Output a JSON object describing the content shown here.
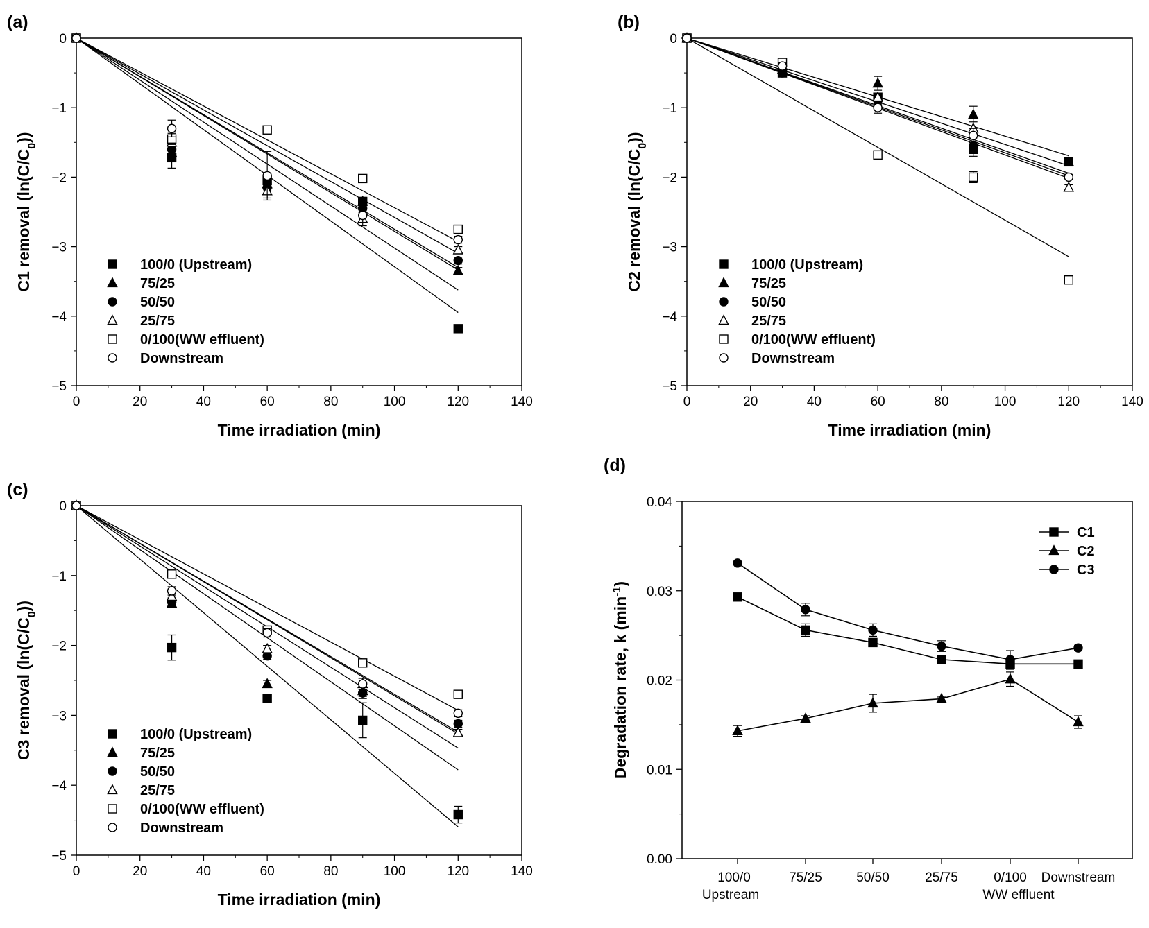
{
  "chart_data": [
    {
      "type": "scatter",
      "panel_label": "(a)",
      "xlabel": "Time irradiation (min)",
      "ylabel": "C1 removal (ln(C/C",
      "ylabel_sub": "0",
      "ylabel_end": "))",
      "xlim": [
        0,
        140
      ],
      "ylim": [
        -5,
        0
      ],
      "xticks": [
        0,
        20,
        40,
        60,
        80,
        100,
        120,
        140
      ],
      "xtick_labels": [
        "0",
        "20",
        "40",
        "60",
        "80",
        "100",
        "120",
        "140"
      ],
      "yticks": [
        0,
        -1,
        -2,
        -3,
        -4,
        -5
      ],
      "ytick_labels": [
        "0",
        "−1",
        "−2",
        "−3",
        "−4",
        "−5"
      ],
      "legend_position": "lower-left",
      "x": [
        0,
        30,
        60,
        90,
        120
      ],
      "series": [
        {
          "name": "100/0 (Upstream)",
          "marker": "square-filled",
          "values": [
            0,
            -1.72,
            -2.05,
            -2.35,
            -4.18
          ],
          "err": [
            0,
            0.15,
            0.1,
            0.05,
            0.05
          ],
          "slope": -0.0329
        },
        {
          "name": "75/25",
          "marker": "triangle-filled",
          "values": [
            0,
            -1.65,
            -2.1,
            -2.35,
            -3.35
          ],
          "err": [
            0,
            0.08,
            0.1,
            0.06,
            0.05
          ],
          "slope": -0.0302
        },
        {
          "name": "50/50",
          "marker": "circle-filled",
          "values": [
            0,
            -1.6,
            -2.15,
            -2.45,
            -3.2
          ],
          "err": [
            0,
            0.08,
            0.1,
            0.06,
            0.05
          ],
          "slope": -0.0278
        },
        {
          "name": "25/75",
          "marker": "triangle-open",
          "values": [
            0,
            -1.5,
            -2.2,
            -2.6,
            -3.05
          ],
          "err": [
            0,
            0.08,
            0.1,
            0.1,
            0.05
          ],
          "slope": -0.0275
        },
        {
          "name": "0/100(WW effluent)",
          "marker": "square-open",
          "values": [
            0,
            -1.45,
            -1.32,
            -2.02,
            -2.75
          ],
          "err": [
            0,
            0.08,
            0.05,
            0.05,
            0.05
          ],
          "slope": -0.0244
        },
        {
          "name": "Downstream",
          "marker": "circle-open",
          "values": [
            0,
            -1.3,
            -1.98,
            -2.55,
            -2.9
          ],
          "err": [
            0,
            0.12,
            0.35,
            0.1,
            0.05
          ],
          "slope": -0.0258
        }
      ]
    },
    {
      "type": "scatter",
      "panel_label": "(b)",
      "xlabel": "Time irradiation (min)",
      "ylabel": "C2 removal (ln(C/C",
      "ylabel_sub": "0",
      "ylabel_end": "))",
      "xlim": [
        0,
        140
      ],
      "ylim": [
        -5,
        0
      ],
      "xticks": [
        0,
        20,
        40,
        60,
        80,
        100,
        120,
        140
      ],
      "xtick_labels": [
        "0",
        "20",
        "40",
        "60",
        "80",
        "100",
        "120",
        "140"
      ],
      "yticks": [
        0,
        -1,
        -2,
        -3,
        -4,
        -5
      ],
      "ytick_labels": [
        "0",
        "−1",
        "−2",
        "−3",
        "−4",
        "−5"
      ],
      "legend_position": "lower-left",
      "x": [
        0,
        30,
        60,
        90,
        120
      ],
      "series": [
        {
          "name": "100/0 (Upstream)",
          "marker": "square-filled",
          "values": [
            0,
            -0.5,
            -0.85,
            -1.6,
            -1.78
          ],
          "err": [
            0,
            0.05,
            0.05,
            0.1,
            0.04
          ],
          "slope": -0.0162
        },
        {
          "name": "75/25",
          "marker": "triangle-filled",
          "values": [
            0,
            -0.45,
            -0.65,
            -1.1,
            -1.78
          ],
          "err": [
            0,
            0.05,
            0.1,
            0.12,
            0.04
          ],
          "slope": -0.0141
        },
        {
          "name": "50/50",
          "marker": "circle-filled",
          "values": [
            0,
            -0.5,
            -0.9,
            -1.55,
            -1.78
          ],
          "err": [
            0,
            0.05,
            0.05,
            0.1,
            0.04
          ],
          "slope": -0.0168
        },
        {
          "name": "25/75",
          "marker": "triangle-open",
          "values": [
            0,
            -0.4,
            -0.85,
            -1.3,
            -2.15
          ],
          "err": [
            0,
            0.05,
            0.05,
            0.1,
            0.04
          ],
          "slope": -0.0153
        },
        {
          "name": "0/100(WW effluent)",
          "marker": "square-open",
          "values": [
            0,
            -0.35,
            -1.68,
            -2.0,
            -3.48
          ],
          "err": [
            0,
            0.05,
            0.05,
            0.08,
            0.04
          ],
          "slope": -0.0262
        },
        {
          "name": "Downstream",
          "marker": "circle-open",
          "values": [
            0,
            -0.4,
            -1.0,
            -1.4,
            -2.0
          ],
          "err": [
            0,
            0.05,
            0.08,
            0.1,
            0.04
          ],
          "slope": -0.0165
        }
      ]
    },
    {
      "type": "scatter",
      "panel_label": "(c)",
      "xlabel": "Time irradiation (min)",
      "ylabel": "C3 removal (ln(C/C",
      "ylabel_sub": "0",
      "ylabel_end": "))",
      "xlim": [
        0,
        140
      ],
      "ylim": [
        -5,
        0
      ],
      "xticks": [
        0,
        20,
        40,
        60,
        80,
        100,
        120,
        140
      ],
      "xtick_labels": [
        "0",
        "20",
        "40",
        "60",
        "80",
        "100",
        "120",
        "140"
      ],
      "yticks": [
        0,
        -1,
        -2,
        -3,
        -4,
        -5
      ],
      "ytick_labels": [
        "0",
        "−1",
        "−2",
        "−3",
        "−4",
        "−5"
      ],
      "legend_position": "lower-left",
      "x": [
        0,
        30,
        60,
        90,
        120
      ],
      "series": [
        {
          "name": "100/0 (Upstream)",
          "marker": "square-filled",
          "values": [
            0,
            -2.03,
            -2.76,
            -3.07,
            -4.42
          ],
          "err": [
            0,
            0.18,
            0.06,
            0.25,
            0.12
          ],
          "slope": -0.0383
        },
        {
          "name": "75/25",
          "marker": "triangle-filled",
          "values": [
            0,
            -1.4,
            -2.55,
            -2.65,
            -3.25
          ],
          "err": [
            0,
            0.06,
            0.05,
            0.08,
            0.05
          ],
          "slope": -0.0315
        },
        {
          "name": "50/50",
          "marker": "circle-filled",
          "values": [
            0,
            -1.38,
            -2.15,
            -2.68,
            -3.12
          ],
          "err": [
            0,
            0.06,
            0.05,
            0.08,
            0.05
          ],
          "slope": -0.0289
        },
        {
          "name": "25/75",
          "marker": "triangle-open",
          "values": [
            0,
            -1.3,
            -2.05,
            -2.55,
            -3.25
          ],
          "err": [
            0,
            0.06,
            0.05,
            0.08,
            0.05
          ],
          "slope": -0.0272
        },
        {
          "name": "0/100(WW effluent)",
          "marker": "square-open",
          "values": [
            0,
            -0.98,
            -1.78,
            -2.25,
            -2.7
          ],
          "err": [
            0,
            0.05,
            0.05,
            0.05,
            0.05
          ],
          "slope": -0.0244
        },
        {
          "name": "Downstream",
          "marker": "circle-open",
          "values": [
            0,
            -1.22,
            -1.82,
            -2.55,
            -2.97
          ],
          "err": [
            0,
            0.06,
            0.06,
            0.08,
            0.05
          ],
          "slope": -0.027
        }
      ]
    },
    {
      "type": "line",
      "panel_label": "(d)",
      "ylabel": "Degradation rate, k (min",
      "ylabel_sup": "-1",
      "ylabel_end": ")",
      "categories": [
        "100/0",
        "75/25",
        "50/50",
        "25/75",
        "0/100",
        "Downstream"
      ],
      "category_sublabels": [
        "Upstream",
        "",
        "",
        "",
        "WW effluent",
        ""
      ],
      "ylim": [
        0,
        0.04
      ],
      "yticks": [
        0,
        0.01,
        0.02,
        0.03,
        0.04
      ],
      "ytick_labels": [
        "0.00",
        "0.01",
        "0.02",
        "0.03",
        "0.04"
      ],
      "legend_position": "top-right",
      "series": [
        {
          "name": "C1",
          "marker": "square-filled",
          "values": [
            0.0293,
            0.0256,
            0.0242,
            0.0223,
            0.0218,
            0.0218
          ],
          "err": [
            0.0003,
            0.0007,
            0.0003,
            0.0003,
            0.0006,
            0.0003
          ]
        },
        {
          "name": "C2",
          "marker": "triangle-filled",
          "values": [
            0.0143,
            0.0157,
            0.0174,
            0.0179,
            0.0201,
            0.0153
          ],
          "err": [
            0.0006,
            0.0003,
            0.001,
            0.0002,
            0.0008,
            0.0007
          ]
        },
        {
          "name": "C3",
          "marker": "circle-filled",
          "values": [
            0.0331,
            0.0279,
            0.0256,
            0.0238,
            0.0223,
            0.0236
          ],
          "err": [
            0.0002,
            0.0007,
            0.0007,
            0.0006,
            0.001,
            0.0003
          ]
        }
      ]
    }
  ]
}
